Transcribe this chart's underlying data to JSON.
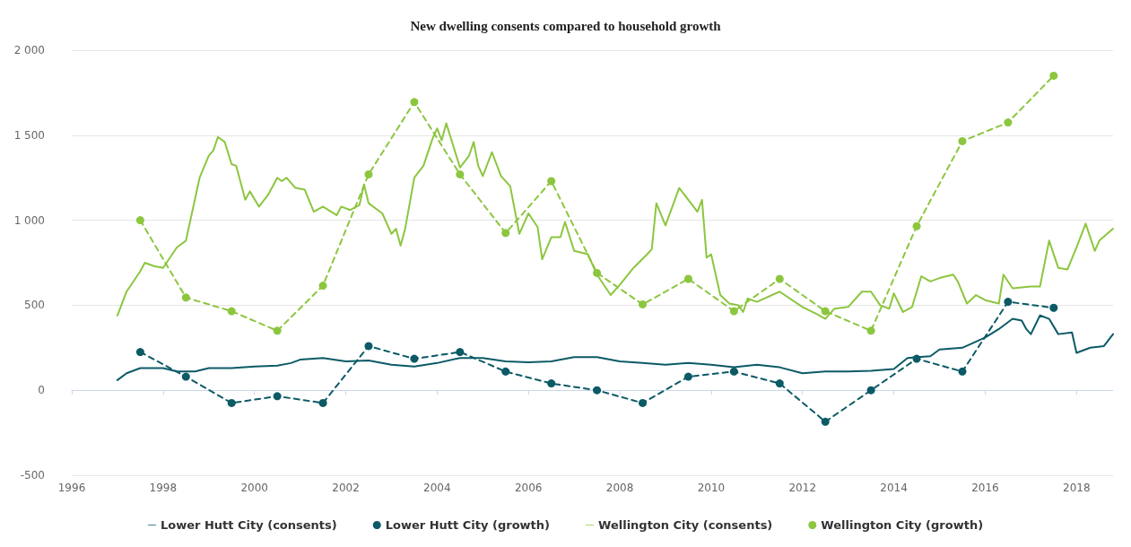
{
  "chart_data": {
    "type": "line",
    "title": "New dwelling consents compared to household growth",
    "xlim": [
      1996,
      2018.8
    ],
    "xticks": [
      1996,
      1998,
      2000,
      2002,
      2004,
      2006,
      2008,
      2010,
      2012,
      2014,
      2016,
      2018
    ],
    "ylim": [
      -500,
      2000
    ],
    "yticks": [
      {
        "value": -500,
        "label": "-500"
      },
      {
        "value": 0,
        "label": "0"
      },
      {
        "value": 500,
        "label": "500"
      },
      {
        "value": 1000,
        "label": "1 000"
      },
      {
        "value": 1500,
        "label": "1 500"
      },
      {
        "value": 2000,
        "label": "2 000"
      }
    ],
    "grid": "y",
    "legend": "bottom",
    "series": [
      {
        "name": "Lower Hutt City (consents)",
        "color": "#0b5a66",
        "marker": "none",
        "line_style": "solid",
        "x": [
          1997.0,
          1997.2,
          1997.5,
          1998.0,
          1998.3,
          1998.7,
          1999.0,
          1999.5,
          2000.0,
          2000.5,
          2000.8,
          2001.0,
          2001.5,
          2002.0,
          2002.5,
          2003.0,
          2003.5,
          2004.0,
          2004.5,
          2005.0,
          2005.5,
          2006.0,
          2006.5,
          2007.0,
          2007.5,
          2008.0,
          2008.5,
          2009.0,
          2009.5,
          2010.0,
          2010.5,
          2011.0,
          2011.5,
          2012.0,
          2012.5,
          2013.0,
          2013.5,
          2014.0,
          2014.3,
          2014.8,
          2015.0,
          2015.5,
          2016.0,
          2016.3,
          2016.6,
          2016.8,
          2016.9,
          2017.0,
          2017.2,
          2017.4,
          2017.6,
          2017.9,
          2018.0,
          2018.3,
          2018.6,
          2018.8
        ],
        "values": [
          60,
          100,
          130,
          130,
          110,
          110,
          130,
          130,
          140,
          145,
          160,
          180,
          190,
          170,
          175,
          150,
          140,
          160,
          190,
          190,
          170,
          165,
          170,
          195,
          195,
          170,
          160,
          150,
          160,
          150,
          135,
          150,
          135,
          100,
          110,
          110,
          115,
          125,
          190,
          200,
          240,
          250,
          310,
          360,
          420,
          410,
          360,
          330,
          440,
          420,
          330,
          340,
          220,
          250,
          260,
          330
        ]
      },
      {
        "name": "Lower Hutt City (growth)",
        "color": "#0b5a66",
        "marker": "circle",
        "line_style": "dashed",
        "x": [
          1997.5,
          1998.5,
          1999.5,
          2000.5,
          2001.5,
          2002.5,
          2003.5,
          2004.5,
          2005.5,
          2006.5,
          2007.5,
          2008.5,
          2009.5,
          2010.5,
          2011.5,
          2012.5,
          2013.5,
          2014.5,
          2015.5,
          2016.5,
          2017.5
        ],
        "values": [
          225,
          80,
          -75,
          -35,
          -75,
          260,
          185,
          225,
          110,
          40,
          0,
          -75,
          80,
          110,
          40,
          -185,
          0,
          185,
          110,
          520,
          485
        ]
      },
      {
        "name": "Wellington City (consents)",
        "color": "#8cc63f",
        "marker": "none",
        "line_style": "solid",
        "x": [
          1997.0,
          1997.2,
          1997.5,
          1997.6,
          1997.8,
          1998.0,
          1998.3,
          1998.5,
          1998.8,
          1999.0,
          1999.1,
          1999.2,
          1999.35,
          1999.5,
          1999.6,
          1999.8,
          1999.9,
          2000.1,
          2000.3,
          2000.5,
          2000.6,
          2000.7,
          2000.9,
          2001.1,
          2001.3,
          2001.5,
          2001.8,
          2001.9,
          2002.1,
          2002.3,
          2002.4,
          2002.5,
          2002.8,
          2003.0,
          2003.1,
          2003.2,
          2003.3,
          2003.5,
          2003.7,
          2003.9,
          2004.0,
          2004.1,
          2004.2,
          2004.5,
          2004.7,
          2004.8,
          2004.9,
          2005.0,
          2005.2,
          2005.4,
          2005.6,
          2005.8,
          2006.0,
          2006.2,
          2006.3,
          2006.5,
          2006.7,
          2006.8,
          2007.0,
          2007.3,
          2007.5,
          2007.8,
          2008.0,
          2008.3,
          2008.6,
          2008.7,
          2008.8,
          2009.0,
          2009.3,
          2009.7,
          2009.8,
          2009.9,
          2010.0,
          2010.2,
          2010.4,
          2010.6,
          2010.7,
          2010.8,
          2011.0,
          2011.5,
          2012.0,
          2012.3,
          2012.5,
          2012.7,
          2013.0,
          2013.3,
          2013.5,
          2013.7,
          2013.9,
          2014.0,
          2014.2,
          2014.4,
          2014.6,
          2014.8,
          2015.0,
          2015.3,
          2015.4,
          2015.6,
          2015.8,
          2016.0,
          2016.3,
          2016.4,
          2016.6,
          2017.0,
          2017.2,
          2017.4,
          2017.6,
          2017.8,
          2018.0,
          2018.2,
          2018.4,
          2018.5,
          2018.8
        ],
        "values": [
          440,
          580,
          700,
          750,
          730,
          720,
          840,
          880,
          1250,
          1380,
          1410,
          1490,
          1460,
          1330,
          1320,
          1120,
          1170,
          1080,
          1150,
          1250,
          1230,
          1250,
          1190,
          1180,
          1050,
          1080,
          1030,
          1080,
          1060,
          1090,
          1210,
          1100,
          1040,
          920,
          950,
          850,
          950,
          1250,
          1320,
          1480,
          1540,
          1470,
          1570,
          1310,
          1380,
          1460,
          1320,
          1260,
          1400,
          1260,
          1200,
          920,
          1040,
          960,
          770,
          900,
          900,
          990,
          820,
          800,
          680,
          560,
          620,
          720,
          800,
          830,
          1100,
          970,
          1190,
          1050,
          1120,
          780,
          800,
          560,
          510,
          500,
          460,
          540,
          520,
          580,
          490,
          450,
          420,
          480,
          490,
          580,
          580,
          500,
          480,
          570,
          460,
          490,
          670,
          640,
          660,
          680,
          640,
          510,
          560,
          530,
          510,
          680,
          600,
          610,
          610,
          880,
          720,
          710,
          840,
          980,
          820,
          880,
          950
        ]
      },
      {
        "name": "Wellington City (growth)",
        "color": "#8cc63f",
        "marker": "circle",
        "line_style": "dashed",
        "x": [
          1997.5,
          1998.5,
          1999.5,
          2000.5,
          2001.5,
          2002.5,
          2003.5,
          2004.5,
          2005.5,
          2006.5,
          2007.5,
          2008.5,
          2009.5,
          2010.5,
          2011.5,
          2012.5,
          2013.5,
          2014.5,
          2015.5,
          2016.5,
          2017.5
        ],
        "values": [
          1000,
          545,
          465,
          350,
          615,
          1270,
          1695,
          1270,
          925,
          1230,
          690,
          505,
          655,
          465,
          655,
          465,
          350,
          965,
          1465,
          1575,
          1850
        ]
      }
    ]
  }
}
